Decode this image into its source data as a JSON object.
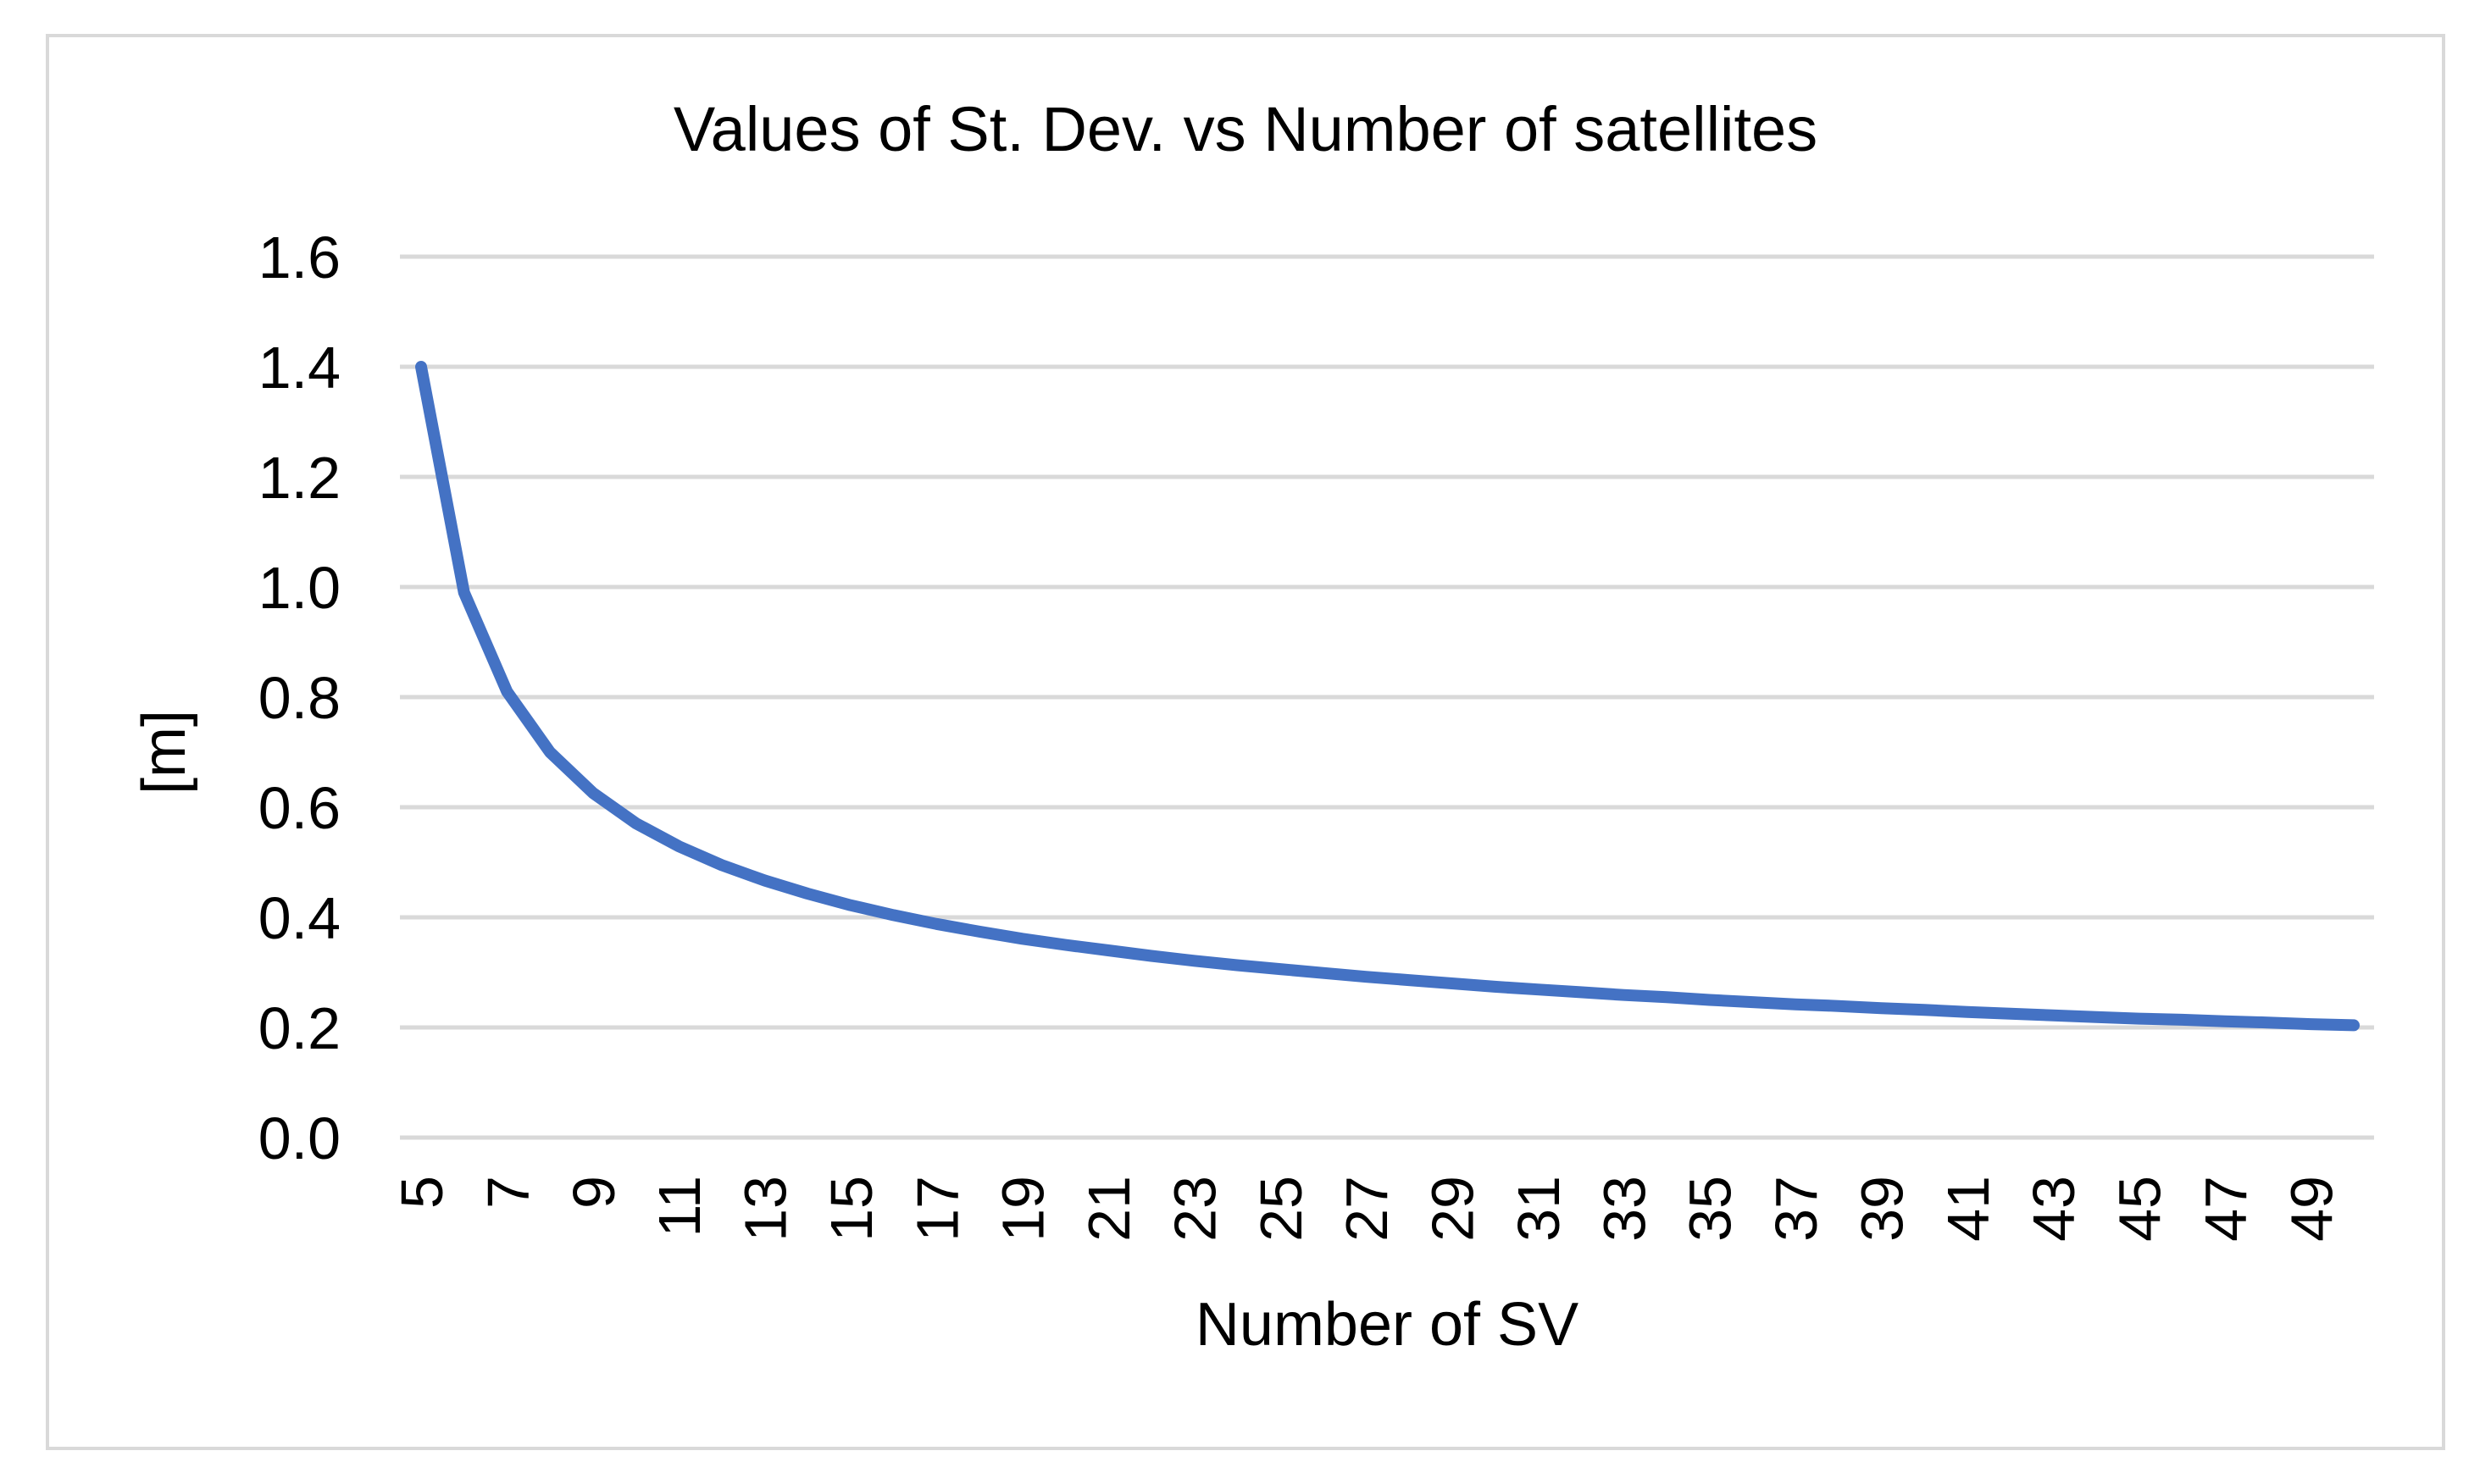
{
  "chart_data": {
    "type": "line",
    "title": "Values of St. Dev. vs Number of satellites",
    "xlabel": "Number of SV",
    "ylabel": "[m]",
    "ylim": [
      0,
      1.6
    ],
    "y_ticks": [
      "0.0",
      "0.2",
      "0.4",
      "0.6",
      "0.8",
      "1.0",
      "1.2",
      "1.4",
      "1.6"
    ],
    "x_tick_labels": [
      "5",
      "7",
      "9",
      "11",
      "13",
      "15",
      "17",
      "19",
      "21",
      "23",
      "25",
      "27",
      "29",
      "31",
      "33",
      "35",
      "37",
      "39",
      "41",
      "43",
      "45",
      "47",
      "49"
    ],
    "grid": true,
    "legend": "none",
    "colors": {
      "series": "#4472c4",
      "grid": "#d9d9d9",
      "frame": "#d9d9d9"
    },
    "x": [
      5,
      6,
      7,
      8,
      9,
      10,
      11,
      12,
      13,
      14,
      15,
      16,
      17,
      18,
      19,
      20,
      21,
      22,
      23,
      24,
      25,
      26,
      27,
      28,
      29,
      30,
      31,
      32,
      33,
      34,
      35,
      36,
      37,
      38,
      39,
      40,
      41,
      42,
      43,
      44,
      45,
      46,
      47,
      48,
      49,
      50
    ],
    "series": [
      {
        "name": "St. Dev.",
        "values": [
          1.4,
          0.99,
          0.81,
          0.7,
          0.626,
          0.571,
          0.529,
          0.495,
          0.467,
          0.443,
          0.422,
          0.404,
          0.388,
          0.374,
          0.361,
          0.35,
          0.34,
          0.33,
          0.321,
          0.313,
          0.306,
          0.299,
          0.292,
          0.286,
          0.28,
          0.274,
          0.269,
          0.264,
          0.259,
          0.255,
          0.25,
          0.246,
          0.242,
          0.239,
          0.235,
          0.232,
          0.228,
          0.225,
          0.222,
          0.219,
          0.216,
          0.214,
          0.211,
          0.209,
          0.206,
          0.204
        ]
      }
    ]
  }
}
